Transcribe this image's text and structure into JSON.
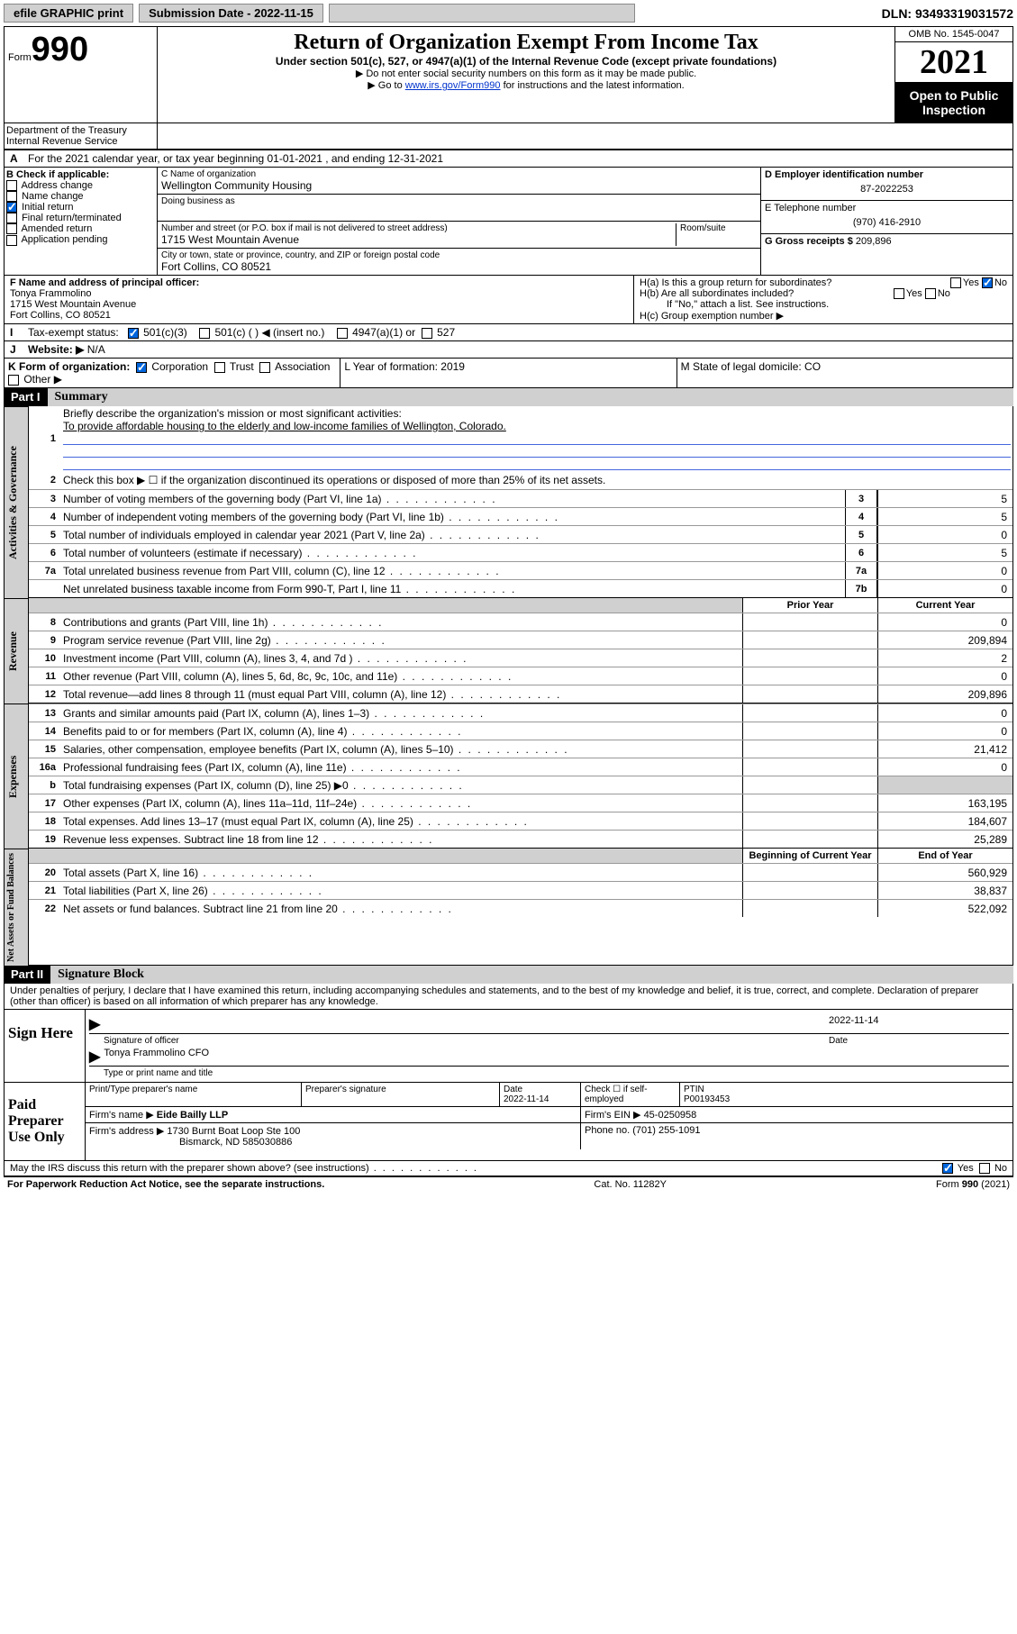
{
  "topbar": {
    "efile": "efile GRAPHIC print",
    "submission": "Submission Date - 2022-11-15",
    "dln": "DLN: 93493319031572"
  },
  "header": {
    "form_word": "Form",
    "form_num": "990",
    "title": "Return of Organization Exempt From Income Tax",
    "sub1": "Under section 501(c), 527, or 4947(a)(1) of the Internal Revenue Code (except private foundations)",
    "note1": "▶ Do not enter social security numbers on this form as it may be made public.",
    "note2_pre": "▶ Go to ",
    "note2_link": "www.irs.gov/Form990",
    "note2_post": " for instructions and the latest information.",
    "omb": "OMB No. 1545-0047",
    "year": "2021",
    "openpub": "Open to Public Inspection",
    "dept": "Department of the Treasury",
    "irs": "Internal Revenue Service"
  },
  "line_a": "For the 2021 calendar year, or tax year beginning 01-01-2021    , and ending 12-31-2021",
  "block_b": {
    "title": "B Check if applicable:",
    "items": [
      "Address change",
      "Name change",
      "Initial return",
      "Final return/terminated",
      "Amended return",
      "Application pending"
    ],
    "checked_idx": 2
  },
  "block_c": {
    "name_label": "C Name of organization",
    "name": "Wellington Community Housing",
    "dba_label": "Doing business as",
    "addr_label": "Number and street (or P.O. box if mail is not delivered to street address)",
    "room_label": "Room/suite",
    "addr": "1715 West Mountain Avenue",
    "city_label": "City or town, state or province, country, and ZIP or foreign postal code",
    "city": "Fort Collins, CO  80521"
  },
  "block_d": {
    "ein_label": "D Employer identification number",
    "ein": "87-2022253",
    "tel_label": "E Telephone number",
    "tel": "(970) 416-2910",
    "gross_label": "G Gross receipts $",
    "gross": "209,896"
  },
  "block_f": {
    "label": "F  Name and address of principal officer:",
    "name": "Tonya Frammolino",
    "addr1": "1715 West Mountain Avenue",
    "addr2": "Fort Collins, CO  80521"
  },
  "block_h": {
    "a": "H(a)  Is this a group return for subordinates?",
    "yes": "Yes",
    "no": "No",
    "b": "H(b)  Are all subordinates included?",
    "note": "If \"No,\" attach a list. See instructions.",
    "c": "H(c)  Group exemption number ▶"
  },
  "line_i": {
    "label": "Tax-exempt status:",
    "o1": "501(c)(3)",
    "o2": "501(c) (    ) ◀ (insert no.)",
    "o3": "4947(a)(1) or",
    "o4": "527"
  },
  "line_j": {
    "label": "Website: ▶",
    "val": "N/A"
  },
  "line_k": {
    "label": "K Form of organization:",
    "o1": "Corporation",
    "o2": "Trust",
    "o3": "Association",
    "o4": "Other ▶",
    "l": "L Year of formation: 2019",
    "m": "M State of legal domicile: CO"
  },
  "part1": {
    "bar": "Part I",
    "title": "Summary",
    "q1": "Briefly describe the organization's mission or most significant activities:",
    "q1_ans": "To provide affordable housing to the elderly and low-income families of Wellington, Colorado.",
    "q2": "Check this box ▶ ☐  if the organization discontinued its operations or disposed of more than 25% of its net assets.",
    "lines_small": [
      {
        "n": "3",
        "t": "Number of voting members of the governing body (Part VI, line 1a)",
        "box": "3",
        "v": "5"
      },
      {
        "n": "4",
        "t": "Number of independent voting members of the governing body (Part VI, line 1b)",
        "box": "4",
        "v": "5"
      },
      {
        "n": "5",
        "t": "Total number of individuals employed in calendar year 2021 (Part V, line 2a)",
        "box": "5",
        "v": "0"
      },
      {
        "n": "6",
        "t": "Total number of volunteers (estimate if necessary)",
        "box": "6",
        "v": "5"
      },
      {
        "n": "7a",
        "t": "Total unrelated business revenue from Part VIII, column (C), line 12",
        "box": "7a",
        "v": "0"
      },
      {
        "n": "",
        "t": "Net unrelated business taxable income from Form 990-T, Part I, line 11",
        "box": "7b",
        "v": "0"
      }
    ],
    "hdr_prior": "Prior Year",
    "hdr_curr": "Current Year",
    "rev_lines": [
      {
        "n": "8",
        "t": "Contributions and grants (Part VIII, line 1h)",
        "p": "",
        "c": "0"
      },
      {
        "n": "9",
        "t": "Program service revenue (Part VIII, line 2g)",
        "p": "",
        "c": "209,894"
      },
      {
        "n": "10",
        "t": "Investment income (Part VIII, column (A), lines 3, 4, and 7d )",
        "p": "",
        "c": "2"
      },
      {
        "n": "11",
        "t": "Other revenue (Part VIII, column (A), lines 5, 6d, 8c, 9c, 10c, and 11e)",
        "p": "",
        "c": "0"
      },
      {
        "n": "12",
        "t": "Total revenue—add lines 8 through 11 (must equal Part VIII, column (A), line 12)",
        "p": "",
        "c": "209,896"
      }
    ],
    "exp_lines": [
      {
        "n": "13",
        "t": "Grants and similar amounts paid (Part IX, column (A), lines 1–3)",
        "p": "",
        "c": "0"
      },
      {
        "n": "14",
        "t": "Benefits paid to or for members (Part IX, column (A), line 4)",
        "p": "",
        "c": "0"
      },
      {
        "n": "15",
        "t": "Salaries, other compensation, employee benefits (Part IX, column (A), lines 5–10)",
        "p": "",
        "c": "21,412"
      },
      {
        "n": "16a",
        "t": "Professional fundraising fees (Part IX, column (A), line 11e)",
        "p": "",
        "c": "0"
      },
      {
        "n": "b",
        "t": "Total fundraising expenses (Part IX, column (D), line 25) ▶0",
        "p": "grey",
        "c": "grey"
      },
      {
        "n": "17",
        "t": "Other expenses (Part IX, column (A), lines 11a–11d, 11f–24e)",
        "p": "",
        "c": "163,195"
      },
      {
        "n": "18",
        "t": "Total expenses. Add lines 13–17 (must equal Part IX, column (A), line 25)",
        "p": "",
        "c": "184,607"
      },
      {
        "n": "19",
        "t": "Revenue less expenses. Subtract line 18 from line 12",
        "p": "",
        "c": "25,289"
      }
    ],
    "hdr_begin": "Beginning of Current Year",
    "hdr_end": "End of Year",
    "bal_lines": [
      {
        "n": "20",
        "t": "Total assets (Part X, line 16)",
        "p": "",
        "c": "560,929"
      },
      {
        "n": "21",
        "t": "Total liabilities (Part X, line 26)",
        "p": "",
        "c": "38,837"
      },
      {
        "n": "22",
        "t": "Net assets or fund balances. Subtract line 21 from line 20",
        "p": "",
        "c": "522,092"
      }
    ]
  },
  "part2": {
    "bar": "Part II",
    "title": "Signature Block",
    "decl": "Under penalties of perjury, I declare that I have examined this return, including accompanying schedules and statements, and to the best of my knowledge and belief, it is true, correct, and complete. Declaration of preparer (other than officer) is based on all information of which preparer has any knowledge.",
    "sign_here": "Sign Here",
    "sig_officer": "Signature of officer",
    "date": "Date",
    "sig_date": "2022-11-14",
    "name_title": "Tonya Frammolino  CFO",
    "name_label": "Type or print name and title",
    "paid": "Paid Preparer Use Only",
    "col1": "Print/Type preparer's name",
    "col2": "Preparer's signature",
    "col3": "Date",
    "col3v": "2022-11-14",
    "col4": "Check ☐ if self-employed",
    "col5": "PTIN",
    "col5v": "P00193453",
    "firm_name_l": "Firm's name    ▶",
    "firm_name": "Eide Bailly LLP",
    "firm_ein_l": "Firm's EIN ▶",
    "firm_ein": "45-0250958",
    "firm_addr_l": "Firm's address ▶",
    "firm_addr": "1730 Burnt Boat Loop Ste 100",
    "firm_city": "Bismarck, ND  585030886",
    "phone_l": "Phone no.",
    "phone": "(701) 255-1091",
    "may_discuss": "May the IRS discuss this return with the preparer shown above? (see instructions)"
  },
  "footer": {
    "pra": "For Paperwork Reduction Act Notice, see the separate instructions.",
    "cat": "Cat. No. 11282Y",
    "form": "Form 990 (2021)"
  },
  "vtabs": {
    "gov": "Activities & Governance",
    "rev": "Revenue",
    "exp": "Expenses",
    "bal": "Net Assets or Fund Balances"
  }
}
